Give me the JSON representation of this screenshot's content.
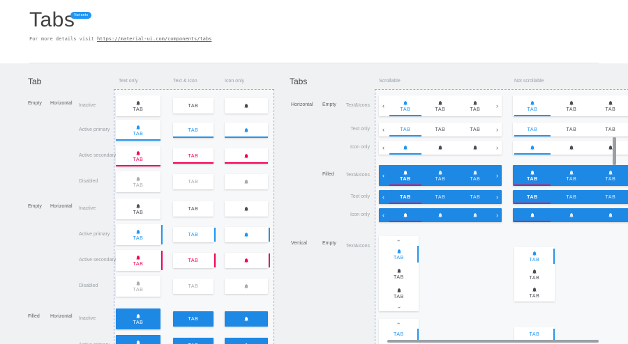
{
  "header": {
    "title": "Tabs",
    "badge": "Variants",
    "subtitle_prefix": "For more details visit",
    "link_text": "https://material-ui.com/components/tabs",
    "link_href": "https://material-ui.com/components/tabs"
  },
  "colors": {
    "primary": "#2196F3",
    "secondary": "#F50057",
    "filled_bar": "#1E88E5",
    "inactive": "#4B4F54",
    "disabled": "#ABABAB",
    "canvas": "#F0F1F2"
  },
  "tab_label": "TAB",
  "icons": {
    "tab_icon": "bell-icon",
    "chevron_left": "‹",
    "chevron_right": "›"
  },
  "left": {
    "heading": "Tab",
    "columns": [
      "Text only",
      "Text & Icon",
      "Icon only"
    ],
    "groups": [
      {
        "fill": "Empty",
        "orientation": "Horizontal",
        "states": [
          "Inactive",
          "Active primary",
          "Active secondary",
          "Disabled"
        ]
      },
      {
        "fill": "Empty",
        "orientation": "Horizontal",
        "states": [
          "Inactive",
          "Active primary",
          "Active secondary",
          "Disabled"
        ]
      },
      {
        "fill": "Filled",
        "orientation": "Horizontal",
        "states": [
          "Inactive",
          "Active primary"
        ]
      }
    ]
  },
  "right": {
    "heading": "Tabs",
    "columns": [
      "Scrollable",
      "Not scrollable"
    ],
    "groups": [
      {
        "orientation": "Horizontal",
        "fill": "Empty",
        "rows": [
          "Text&Icons",
          "Text only",
          "Icon only"
        ]
      },
      {
        "fill": "Filled",
        "rows": [
          "Text&Icons",
          "Text only",
          "Icon only"
        ]
      },
      {
        "orientation": "Vertical",
        "fill": "Empty",
        "rows": [
          "Text&Icons"
        ]
      }
    ]
  }
}
